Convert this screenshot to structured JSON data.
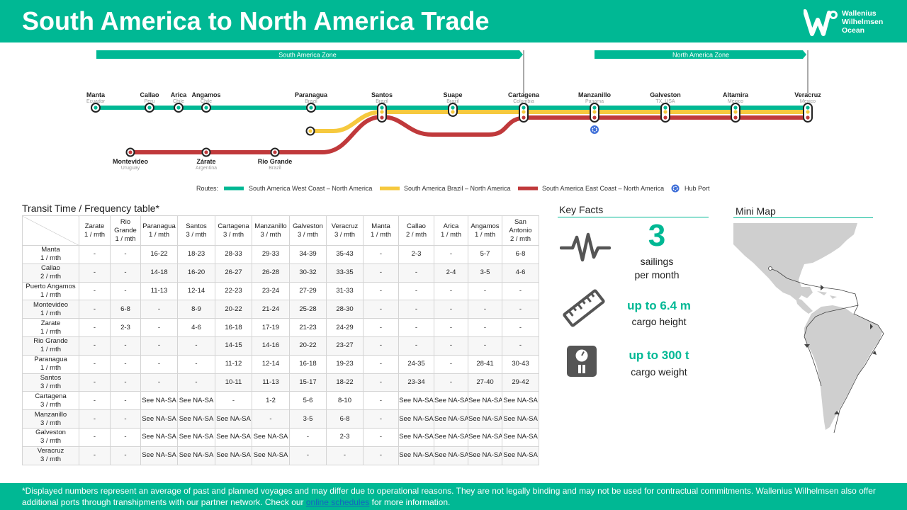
{
  "header": {
    "title": "South America to North America Trade"
  },
  "logo": {
    "line1": "Wallenius",
    "line2": "Wilhelmsen",
    "line3": "Ocean"
  },
  "route_map": {
    "zone_south": "South America Zone",
    "zone_north": "North America Zone",
    "ports_top": [
      {
        "name": "Manta",
        "country": "Ecuador"
      },
      {
        "name": "Callao",
        "country": "Peru"
      },
      {
        "name": "Arica",
        "country": "Chile"
      },
      {
        "name": "Angamos",
        "country": "Chile"
      },
      {
        "name": "Paranagua",
        "country": "Brazil"
      },
      {
        "name": "Santos",
        "country": "Brazil"
      },
      {
        "name": "Suape",
        "country": "Brazil"
      },
      {
        "name": "Cartagena",
        "country": "Colombia"
      },
      {
        "name": "Manzanillo",
        "country": "Panama"
      },
      {
        "name": "Galveston",
        "country": "TX, USA"
      },
      {
        "name": "Altamira",
        "country": "Mexico"
      },
      {
        "name": "Veracruz",
        "country": "Mexico"
      }
    ],
    "ports_bottom": [
      {
        "name": "Montevideo",
        "country": "Uruguay"
      },
      {
        "name": "Zárate",
        "country": "Argentina"
      },
      {
        "name": "Rio Grande",
        "country": "Brazil"
      }
    ],
    "legend": {
      "routes_label": "Routes:",
      "west_coast": "South America West Coast – North America",
      "brazil": "South America Brazil – North America",
      "east_coast": "South America East Coast – North America",
      "hub": "Hub Port"
    },
    "colors": {
      "green": "#00b894",
      "yellow": "#f6c93e",
      "red": "#c0393b",
      "hub": "#3f6fd8"
    }
  },
  "transit": {
    "title": "Transit Time / Frequency table*",
    "columns": [
      {
        "l1": "Zarate",
        "l2": "1 / mth"
      },
      {
        "l1": "Rio Grande",
        "l2": "1 / mth"
      },
      {
        "l1": "Paranagua",
        "l2": "1 / mth"
      },
      {
        "l1": "Santos",
        "l2": "3 / mth"
      },
      {
        "l1": "Cartagena",
        "l2": "3 / mth"
      },
      {
        "l1": "Manzanillo",
        "l2": "3 / mth"
      },
      {
        "l1": "Galveston",
        "l2": "3 / mth"
      },
      {
        "l1": "Veracruz",
        "l2": "3 / mth"
      },
      {
        "l1": "Manta",
        "l2": "1 / mth"
      },
      {
        "l1": "Callao",
        "l2": "2 / mth"
      },
      {
        "l1": "Arica",
        "l2": "1 / mth"
      },
      {
        "l1": "Angamos",
        "l2": "1 / mth"
      },
      {
        "l1": "San Antonio",
        "l2": "2 / mth"
      }
    ],
    "rows": [
      {
        "l1": "Manta",
        "l2": "1 / mth",
        "cells": [
          "-",
          "-",
          "16-22",
          "18-23",
          "28-33",
          "29-33",
          "34-39",
          "35-43",
          "-",
          "2-3",
          "-",
          "5-7",
          "6-8"
        ]
      },
      {
        "l1": "Callao",
        "l2": "2 / mth",
        "cells": [
          "-",
          "-",
          "14-18",
          "16-20",
          "26-27",
          "26-28",
          "30-32",
          "33-35",
          "-",
          "-",
          "2-4",
          "3-5",
          "4-6"
        ]
      },
      {
        "l1": "Puerto Angamos",
        "l2": "1 / mth",
        "cells": [
          "-",
          "-",
          "11-13",
          "12-14",
          "22-23",
          "23-24",
          "27-29",
          "31-33",
          "-",
          "-",
          "-",
          "-",
          "-"
        ]
      },
      {
        "l1": "Montevideo",
        "l2": "1 / mth",
        "cells": [
          "-",
          "6-8",
          "-",
          "8-9",
          "20-22",
          "21-24",
          "25-28",
          "28-30",
          "-",
          "-",
          "-",
          "-",
          "-"
        ]
      },
      {
        "l1": "Zarate",
        "l2": "1 / mth",
        "cells": [
          "-",
          "2-3",
          "-",
          "4-6",
          "16-18",
          "17-19",
          "21-23",
          "24-29",
          "-",
          "-",
          "-",
          "-",
          "-"
        ]
      },
      {
        "l1": "Rio Grande",
        "l2": "1 / mth",
        "cells": [
          "-",
          "-",
          "-",
          "-",
          "14-15",
          "14-16",
          "20-22",
          "23-27",
          "-",
          "-",
          "-",
          "-",
          "-"
        ]
      },
      {
        "l1": "Paranagua",
        "l2": "1 / mth",
        "cells": [
          "-",
          "-",
          "-",
          "-",
          "11-12",
          "12-14",
          "16-18",
          "19-23",
          "-",
          "24-35",
          "-",
          "28-41",
          "30-43"
        ]
      },
      {
        "l1": "Santos",
        "l2": "3 / mth",
        "cells": [
          "-",
          "-",
          "-",
          "-",
          "10-11",
          "11-13",
          "15-17",
          "18-22",
          "-",
          "23-34",
          "-",
          "27-40",
          "29-42"
        ]
      },
      {
        "l1": "Cartagena",
        "l2": "3 / mth",
        "cells": [
          "-",
          "-",
          "See NA-SA",
          "See NA-SA",
          "-",
          "1-2",
          "5-6",
          "8-10",
          "-",
          "See NA-SA",
          "See NA-SA",
          "See NA-SA",
          "See NA-SA"
        ]
      },
      {
        "l1": "Manzanillo",
        "l2": "3 / mth",
        "cells": [
          "-",
          "-",
          "See NA-SA",
          "See NA-SA",
          "See NA-SA",
          "-",
          "3-5",
          "6-8",
          "-",
          "See NA-SA",
          "See NA-SA",
          "See NA-SA",
          "See NA-SA"
        ]
      },
      {
        "l1": "Galveston",
        "l2": "3 / mth",
        "cells": [
          "-",
          "-",
          "See NA-SA",
          "See NA-SA",
          "See NA-SA",
          "See NA-SA",
          "-",
          "2-3",
          "-",
          "See NA-SA",
          "See NA-SA",
          "See NA-SA",
          "See NA-SA"
        ]
      },
      {
        "l1": "Veracruz",
        "l2": "3 / mth",
        "cells": [
          "-",
          "-",
          "See NA-SA",
          "See NA-SA",
          "See NA-SA",
          "See NA-SA",
          "-",
          "-",
          "-",
          "See NA-SA",
          "See NA-SA",
          "See NA-SA",
          "See NA-SA"
        ]
      }
    ]
  },
  "key_facts": {
    "title": "Key Facts",
    "sailings": {
      "value": "3",
      "line1": "sailings",
      "line2": "per month",
      "icon": "pulse-icon"
    },
    "height": {
      "value": "up to 6.4 m",
      "label": "cargo height",
      "icon": "ruler-icon"
    },
    "weight": {
      "value": "up to 300 t",
      "label": "cargo weight",
      "icon": "scale-icon"
    }
  },
  "mini_map": {
    "title": "Mini Map"
  },
  "footer": {
    "text_before": "*Displayed numbers represent  an average of past and planned voyages and may differ due to operational reasons. They are not legally binding and may not be used for contractual commitments. Wallenius Wilhelmsen also offer additional ports through transhipments with our partner network.  Check our ",
    "link_text": "online schedules",
    "text_after": " for more information."
  }
}
